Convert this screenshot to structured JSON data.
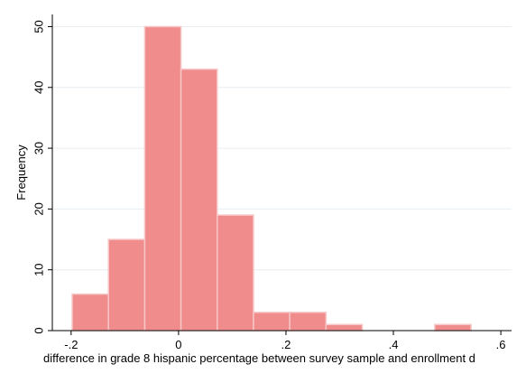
{
  "chart_data": {
    "type": "bar",
    "title": "",
    "xlabel": "difference in grade 8 hispanic percentage between survey sample and enrollment d",
    "ylabel": "Frequency",
    "ylim": [
      0,
      52
    ],
    "xlim": [
      -0.235,
      0.62
    ],
    "grid": true,
    "bin_width": 0.0675,
    "bins": [
      {
        "start": -0.198,
        "end": -0.1305,
        "value": 6
      },
      {
        "start": -0.1305,
        "end": -0.063,
        "value": 15
      },
      {
        "start": -0.063,
        "end": 0.0045,
        "value": 50
      },
      {
        "start": 0.0045,
        "end": 0.072,
        "value": 43
      },
      {
        "start": 0.072,
        "end": 0.1395,
        "value": 19
      },
      {
        "start": 0.1395,
        "end": 0.207,
        "value": 3
      },
      {
        "start": 0.207,
        "end": 0.2745,
        "value": 3
      },
      {
        "start": 0.2745,
        "end": 0.342,
        "value": 1
      },
      {
        "start": 0.342,
        "end": 0.4095,
        "value": 0
      },
      {
        "start": 0.4095,
        "end": 0.477,
        "value": 0
      },
      {
        "start": 0.477,
        "end": 0.5445,
        "value": 1
      }
    ],
    "xticks": [
      {
        "value": -0.2,
        "label": "-.2"
      },
      {
        "value": 0,
        "label": "0"
      },
      {
        "value": 0.2,
        "label": ".2"
      },
      {
        "value": 0.4,
        "label": ".4"
      },
      {
        "value": 0.6,
        "label": ".6"
      }
    ],
    "yticks": [
      {
        "value": 0,
        "label": "0"
      },
      {
        "value": 10,
        "label": "10"
      },
      {
        "value": 20,
        "label": "20"
      },
      {
        "value": 30,
        "label": "30"
      },
      {
        "value": 40,
        "label": "40"
      },
      {
        "value": 50,
        "label": "50"
      }
    ],
    "colors": {
      "bar_fill": "#f08c8c",
      "bar_stroke": "#f7c6c6",
      "grid": "#e8eef2",
      "axis": "#000000"
    }
  }
}
